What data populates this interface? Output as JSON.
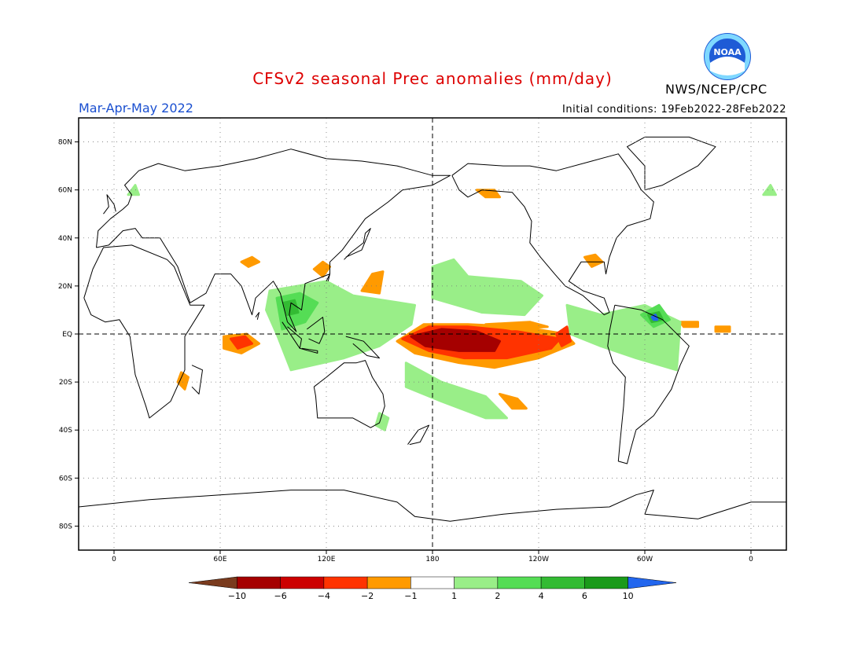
{
  "header": {
    "title": "CFSv2 seasonal Prec anomalies (mm/day)",
    "title_color": "#dd0000",
    "period": "Mar-Apr-May 2022",
    "period_color": "#1a4fd0",
    "initial_conditions": "Initial conditions: 19Feb2022-28Feb2022",
    "agency": "NWS/NCEP/CPC",
    "logo_icon": "noaa-logo-icon",
    "logo_text": "NOAA"
  },
  "map": {
    "lon_range": [
      -20,
      380
    ],
    "lat_range": [
      -90,
      90
    ],
    "lat_ticks": [
      {
        "value": 80,
        "label": "80N"
      },
      {
        "value": 60,
        "label": "60N"
      },
      {
        "value": 40,
        "label": "40N"
      },
      {
        "value": 20,
        "label": "20N"
      },
      {
        "value": 0,
        "label": "EQ"
      },
      {
        "value": -20,
        "label": "20S"
      },
      {
        "value": -40,
        "label": "40S"
      },
      {
        "value": -60,
        "label": "60S"
      },
      {
        "value": -80,
        "label": "80S"
      }
    ],
    "lon_ticks": [
      {
        "value": 0,
        "label": "0"
      },
      {
        "value": 60,
        "label": "60E"
      },
      {
        "value": 120,
        "label": "120E"
      },
      {
        "value": 180,
        "label": "180"
      },
      {
        "value": 240,
        "label": "120W"
      },
      {
        "value": 300,
        "label": "60W"
      },
      {
        "value": 360,
        "label": "0"
      }
    ]
  },
  "colorbar": {
    "colors": [
      "#7a3b1e",
      "#a50000",
      "#cc0000",
      "#ff3300",
      "#ff9a00",
      "#ffffff",
      "#99ee88",
      "#55dd55",
      "#33bb33",
      "#1a9a1a",
      "#2266ee"
    ],
    "labels": [
      "-10",
      "-6",
      "-4",
      "-2",
      "-1",
      "1",
      "2",
      "4",
      "6",
      "10"
    ]
  },
  "anomalies": [
    {
      "color": "#ff9a00",
      "coords": [
        [
          160,
          -3
        ],
        [
          175,
          4
        ],
        [
          200,
          4
        ],
        [
          230,
          3
        ],
        [
          255,
          0
        ],
        [
          260,
          -4
        ],
        [
          240,
          -10
        ],
        [
          215,
          -14
        ],
        [
          195,
          -12
        ],
        [
          170,
          -8
        ]
      ]
    },
    {
      "color": "#ff3300",
      "coords": [
        [
          163,
          -2
        ],
        [
          178,
          3
        ],
        [
          200,
          3
        ],
        [
          228,
          1
        ],
        [
          252,
          -2
        ],
        [
          247,
          -6
        ],
        [
          222,
          -10
        ],
        [
          198,
          -10
        ],
        [
          178,
          -7
        ]
      ]
    },
    {
      "color": "#a50000",
      "coords": [
        [
          168,
          -1
        ],
        [
          185,
          2
        ],
        [
          205,
          1
        ],
        [
          218,
          -3
        ],
        [
          215,
          -7
        ],
        [
          195,
          -7
        ],
        [
          176,
          -5
        ]
      ]
    },
    {
      "color": "#ff9a00",
      "coords": [
        [
          210,
          4
        ],
        [
          235,
          5
        ],
        [
          245,
          3
        ],
        [
          225,
          2
        ]
      ]
    },
    {
      "color": "#ff3300",
      "coords": [
        [
          250,
          0
        ],
        [
          256,
          3
        ],
        [
          258,
          -3
        ],
        [
          253,
          -5
        ]
      ]
    },
    {
      "color": "#ff9a00",
      "coords": [
        [
          62,
          -1
        ],
        [
          75,
          0
        ],
        [
          82,
          -4
        ],
        [
          72,
          -8
        ],
        [
          62,
          -6
        ]
      ]
    },
    {
      "color": "#ff3300",
      "coords": [
        [
          66,
          -2
        ],
        [
          74,
          -1
        ],
        [
          78,
          -4
        ],
        [
          70,
          -6
        ]
      ]
    },
    {
      "color": "#ff9a00",
      "coords": [
        [
          140,
          18
        ],
        [
          146,
          25
        ],
        [
          152,
          26
        ],
        [
          150,
          17
        ]
      ]
    },
    {
      "color": "#ff9a00",
      "coords": [
        [
          113,
          27
        ],
        [
          118,
          30
        ],
        [
          122,
          28
        ],
        [
          118,
          24
        ]
      ]
    },
    {
      "color": "#ff9a00",
      "coords": [
        [
          266,
          32
        ],
        [
          272,
          33
        ],
        [
          276,
          30
        ],
        [
          270,
          28
        ]
      ]
    },
    {
      "color": "#ff9a00",
      "coords": [
        [
          218,
          -25
        ],
        [
          228,
          -27
        ],
        [
          233,
          -31
        ],
        [
          225,
          -31
        ]
      ]
    },
    {
      "color": "#ff9a00",
      "coords": [
        [
          205,
          60
        ],
        [
          215,
          60
        ],
        [
          218,
          57
        ],
        [
          210,
          57
        ]
      ]
    },
    {
      "color": "#ff9a00",
      "coords": [
        [
          38,
          -16
        ],
        [
          42,
          -18
        ],
        [
          40,
          -23
        ],
        [
          36,
          -20
        ]
      ]
    },
    {
      "color": "#ff9a00",
      "coords": [
        [
          72,
          30
        ],
        [
          78,
          32
        ],
        [
          82,
          30
        ],
        [
          76,
          28
        ]
      ]
    },
    {
      "color": "#ff9a00",
      "coords": [
        [
          112,
          0
        ],
        [
          118,
          1
        ],
        [
          120,
          -3
        ],
        [
          114,
          -3
        ]
      ]
    },
    {
      "color": "#ff9a00",
      "coords": [
        [
          320,
          5
        ],
        [
          330,
          5
        ],
        [
          330,
          3
        ],
        [
          322,
          3
        ]
      ]
    },
    {
      "color": "#ff9a00",
      "coords": [
        [
          340,
          3
        ],
        [
          348,
          3
        ],
        [
          348,
          1
        ],
        [
          340,
          1
        ]
      ]
    },
    {
      "color": "#99ee88",
      "coords": [
        [
          88,
          18
        ],
        [
          120,
          22
        ],
        [
          135,
          16
        ],
        [
          170,
          12
        ],
        [
          168,
          4
        ],
        [
          150,
          -5
        ],
        [
          130,
          -10
        ],
        [
          100,
          -15
        ],
        [
          92,
          0
        ],
        [
          86,
          10
        ]
      ]
    },
    {
      "color": "#55dd55",
      "coords": [
        [
          92,
          15
        ],
        [
          105,
          17
        ],
        [
          115,
          13
        ],
        [
          108,
          5
        ],
        [
          95,
          2
        ]
      ]
    },
    {
      "color": "#33bb33",
      "coords": [
        [
          96,
          13
        ],
        [
          102,
          14
        ],
        [
          104,
          9
        ],
        [
          98,
          8
        ]
      ]
    },
    {
      "color": "#99ee88",
      "coords": [
        [
          165,
          -12
        ],
        [
          185,
          -20
        ],
        [
          210,
          -26
        ],
        [
          222,
          -35
        ],
        [
          210,
          -35
        ],
        [
          185,
          -28
        ],
        [
          165,
          -22
        ]
      ]
    },
    {
      "color": "#99ee88",
      "coords": [
        [
          180,
          28
        ],
        [
          192,
          31
        ],
        [
          200,
          24
        ],
        [
          230,
          22
        ],
        [
          242,
          16
        ],
        [
          232,
          8
        ],
        [
          208,
          9
        ],
        [
          180,
          15
        ]
      ]
    },
    {
      "color": "#99ee88",
      "coords": [
        [
          256,
          12
        ],
        [
          275,
          8
        ],
        [
          300,
          12
        ],
        [
          320,
          5
        ],
        [
          318,
          -15
        ],
        [
          295,
          -10
        ],
        [
          275,
          -5
        ],
        [
          258,
          0
        ]
      ]
    },
    {
      "color": "#55dd55",
      "coords": [
        [
          298,
          8
        ],
        [
          308,
          12
        ],
        [
          314,
          6
        ],
        [
          305,
          3
        ]
      ]
    },
    {
      "color": "#33bb33",
      "coords": [
        [
          302,
          8
        ],
        [
          308,
          9
        ],
        [
          310,
          6
        ],
        [
          304,
          5
        ]
      ]
    },
    {
      "color": "#2266ee",
      "coords": [
        [
          304,
          7
        ],
        [
          306,
          8
        ],
        [
          307,
          6
        ],
        [
          305,
          6
        ]
      ]
    },
    {
      "color": "#99ee88",
      "coords": [
        [
          150,
          -33
        ],
        [
          155,
          -35
        ],
        [
          153,
          -40
        ],
        [
          148,
          -38
        ]
      ]
    },
    {
      "color": "#99ee88",
      "coords": [
        [
          8,
          58
        ],
        [
          12,
          62
        ],
        [
          14,
          58
        ]
      ]
    },
    {
      "color": "#99ee88",
      "coords": [
        [
          367,
          58
        ],
        [
          371,
          62
        ],
        [
          374,
          58
        ]
      ]
    }
  ],
  "coastlines": [
    [
      [
        -17,
        15
      ],
      [
        -12,
        27
      ],
      [
        -6,
        36
      ],
      [
        10,
        37
      ],
      [
        30,
        31
      ],
      [
        34,
        28
      ],
      [
        43,
        12
      ],
      [
        51,
        12
      ],
      [
        40,
        -1
      ],
      [
        40,
        -15
      ],
      [
        32,
        -28
      ],
      [
        20,
        -35
      ],
      [
        18,
        -30
      ],
      [
        12,
        -17
      ],
      [
        9,
        -1
      ],
      [
        3,
        6
      ],
      [
        -5,
        5
      ],
      [
        -13,
        8
      ],
      [
        -17,
        15
      ]
    ],
    [
      [
        -10,
        36
      ],
      [
        -9,
        43
      ],
      [
        -2,
        48
      ],
      [
        5,
        52
      ],
      [
        8,
        54
      ],
      [
        10,
        58
      ],
      [
        6,
        62
      ],
      [
        14,
        68
      ],
      [
        25,
        71
      ],
      [
        40,
        68
      ],
      [
        60,
        70
      ],
      [
        80,
        73
      ],
      [
        100,
        77
      ],
      [
        120,
        73
      ],
      [
        140,
        72
      ],
      [
        160,
        70
      ],
      [
        170,
        68
      ],
      [
        180,
        66
      ],
      [
        190,
        66
      ],
      [
        180,
        62
      ],
      [
        163,
        60
      ],
      [
        155,
        55
      ],
      [
        142,
        48
      ],
      [
        136,
        42
      ],
      [
        129,
        35
      ],
      [
        122,
        30
      ],
      [
        122,
        25
      ],
      [
        108,
        21
      ],
      [
        106,
        10
      ],
      [
        100,
        13
      ],
      [
        99,
        8
      ],
      [
        103,
        1
      ],
      [
        98,
        5
      ],
      [
        94,
        17
      ],
      [
        90,
        22
      ],
      [
        80,
        15
      ],
      [
        78,
        8
      ],
      [
        72,
        20
      ],
      [
        66,
        25
      ],
      [
        57,
        25
      ],
      [
        52,
        17
      ],
      [
        43,
        13
      ],
      [
        36,
        28
      ],
      [
        26,
        40
      ],
      [
        16,
        40
      ],
      [
        12,
        44
      ],
      [
        5,
        43
      ],
      [
        -3,
        37
      ],
      [
        -10,
        36
      ]
    ],
    [
      [
        191,
        66
      ],
      [
        200,
        71
      ],
      [
        220,
        70
      ],
      [
        235,
        70
      ],
      [
        250,
        68
      ],
      [
        270,
        72
      ],
      [
        285,
        75
      ],
      [
        292,
        68
      ],
      [
        298,
        60
      ],
      [
        305,
        55
      ],
      [
        303,
        48
      ],
      [
        290,
        45
      ],
      [
        284,
        40
      ],
      [
        280,
        32
      ],
      [
        278,
        25
      ],
      [
        277,
        30
      ],
      [
        264,
        30
      ],
      [
        257,
        22
      ],
      [
        265,
        18
      ],
      [
        277,
        15
      ],
      [
        280,
        9
      ],
      [
        277,
        8
      ],
      [
        274,
        10
      ],
      [
        265,
        16
      ],
      [
        255,
        20
      ],
      [
        249,
        25
      ],
      [
        241,
        32
      ],
      [
        235,
        38
      ],
      [
        236,
        47
      ],
      [
        232,
        53
      ],
      [
        225,
        59
      ],
      [
        208,
        60
      ],
      [
        200,
        57
      ],
      [
        195,
        60
      ],
      [
        191,
        66
      ]
    ],
    [
      [
        283,
        12
      ],
      [
        298,
        10
      ],
      [
        310,
        6
      ],
      [
        325,
        -5
      ],
      [
        320,
        -13
      ],
      [
        315,
        -23
      ],
      [
        305,
        -34
      ],
      [
        295,
        -40
      ],
      [
        292,
        -48
      ],
      [
        290,
        -54
      ],
      [
        285,
        -53
      ],
      [
        286,
        -45
      ],
      [
        288,
        -30
      ],
      [
        289,
        -18
      ],
      [
        282,
        -12
      ],
      [
        279,
        -5
      ],
      [
        280,
        1
      ],
      [
        283,
        12
      ]
    ],
    [
      [
        113,
        -22
      ],
      [
        120,
        -18
      ],
      [
        130,
        -12
      ],
      [
        137,
        -12
      ],
      [
        142,
        -11
      ],
      [
        146,
        -18
      ],
      [
        152,
        -25
      ],
      [
        153,
        -30
      ],
      [
        150,
        -37
      ],
      [
        145,
        -39
      ],
      [
        135,
        -35
      ],
      [
        115,
        -35
      ],
      [
        114,
        -26
      ],
      [
        113,
        -22
      ]
    ],
    [
      [
        -20,
        -72
      ],
      [
        20,
        -69
      ],
      [
        60,
        -67
      ],
      [
        80,
        -66
      ],
      [
        100,
        -65
      ],
      [
        130,
        -65
      ],
      [
        160,
        -70
      ],
      [
        170,
        -76
      ],
      [
        190,
        -78
      ],
      [
        220,
        -75
      ],
      [
        250,
        -73
      ],
      [
        280,
        -72
      ],
      [
        295,
        -67
      ],
      [
        305,
        -65
      ],
      [
        300,
        -75
      ],
      [
        330,
        -77
      ],
      [
        360,
        -70
      ],
      [
        380,
        -70
      ]
    ],
    [
      [
        300,
        60
      ],
      [
        310,
        62
      ],
      [
        330,
        70
      ],
      [
        340,
        78
      ],
      [
        325,
        82
      ],
      [
        300,
        82
      ],
      [
        290,
        78
      ],
      [
        300,
        70
      ],
      [
        300,
        60
      ]
    ],
    [
      [
        95,
        5
      ],
      [
        105,
        -6
      ],
      [
        106,
        -2
      ],
      [
        98,
        3
      ]
    ],
    [
      [
        105,
        -6
      ],
      [
        115,
        -8
      ],
      [
        115,
        -7
      ],
      [
        106,
        -6
      ]
    ],
    [
      [
        109,
        2
      ],
      [
        118,
        7
      ],
      [
        119,
        1
      ],
      [
        116,
        -4
      ],
      [
        110,
        -2
      ]
    ],
    [
      [
        131,
        -1
      ],
      [
        141,
        -3
      ],
      [
        150,
        -10
      ],
      [
        143,
        -9
      ],
      [
        135,
        -4
      ]
    ],
    [
      [
        130,
        31
      ],
      [
        134,
        34
      ],
      [
        141,
        38
      ],
      [
        142,
        42
      ],
      [
        145,
        44
      ],
      [
        140,
        35
      ],
      [
        131,
        32
      ]
    ],
    [
      [
        -6,
        50
      ],
      [
        -3,
        53
      ],
      [
        -4,
        58
      ],
      [
        0,
        54
      ],
      [
        1,
        51
      ]
    ],
    [
      [
        166,
        -46
      ],
      [
        172,
        -40
      ],
      [
        178,
        -38
      ],
      [
        173,
        -45
      ],
      [
        167,
        -46
      ]
    ],
    [
      [
        44,
        -13
      ],
      [
        50,
        -15
      ],
      [
        48,
        -25
      ],
      [
        44,
        -22
      ]
    ],
    [
      [
        120,
        22
      ],
      [
        122,
        25
      ],
      [
        121,
        22
      ]
    ],
    [
      [
        80,
        7
      ],
      [
        82,
        9
      ],
      [
        81,
        6
      ]
    ]
  ]
}
